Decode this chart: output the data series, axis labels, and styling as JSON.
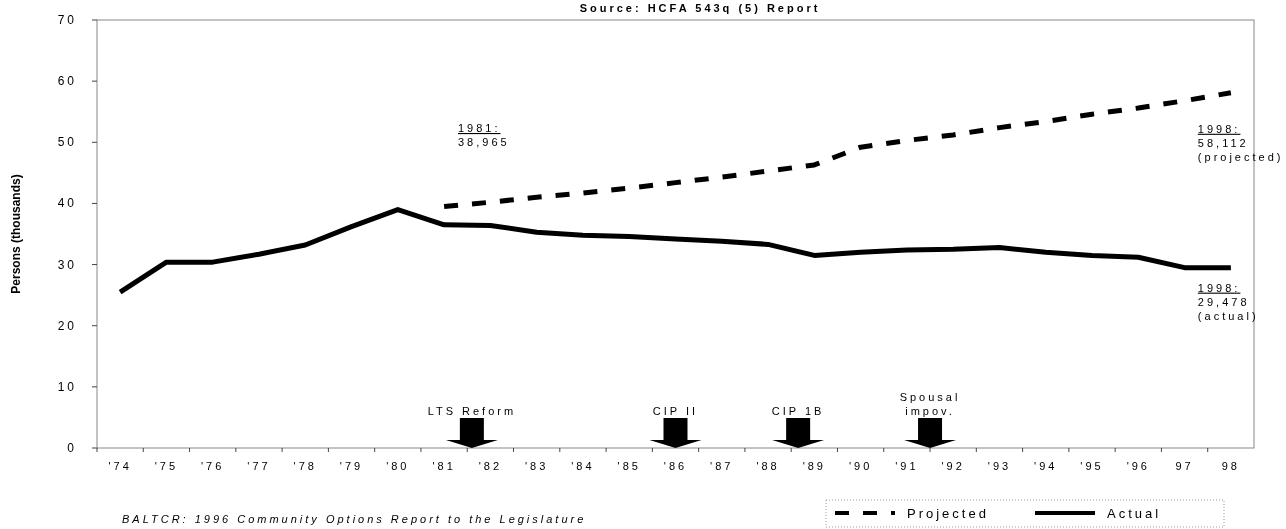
{
  "chart_data": {
    "type": "line",
    "title": "Source: HCFA 543q (5) Report",
    "ylabel": "Persons (thousands)",
    "categories": [
      "'74",
      "'75",
      "'76",
      "'77",
      "'78",
      "'79",
      "'80",
      "'81",
      "'82",
      "'83",
      "'84",
      "'85",
      "'86",
      "'87",
      "'88",
      "'89",
      "'90",
      "'91",
      "'92",
      "'93",
      "'94",
      "'95",
      "'96",
      "97",
      "98"
    ],
    "series": [
      {
        "name": "Projected",
        "color": "#000000",
        "line_style": "dashed",
        "values": [
          null,
          null,
          null,
          null,
          null,
          null,
          null,
          39.5,
          40.2,
          41.0,
          41.7,
          42.5,
          43.4,
          44.3,
          45.3,
          46.3,
          49.2,
          50.3,
          51.2,
          52.4,
          53.4,
          54.6,
          55.6,
          56.8,
          58.1
        ]
      },
      {
        "name": "Actual",
        "color": "#000000",
        "line_style": "solid",
        "values": [
          25.5,
          30.4,
          30.4,
          31.7,
          33.2,
          36.2,
          39.0,
          36.5,
          36.4,
          35.3,
          34.8,
          34.6,
          34.2,
          33.8,
          33.3,
          31.5,
          32.0,
          32.4,
          32.5,
          32.8,
          32.0,
          31.5,
          31.2,
          29.5,
          29.5
        ]
      }
    ],
    "ylim": [
      0,
      70
    ],
    "yticks": [
      0,
      10,
      20,
      30,
      40,
      50,
      60,
      70
    ],
    "grid": false,
    "legend": "bottom right",
    "annotations": [
      "1981:\n38,965",
      {
        "text": "1998:\n58,112\n(projected)",
        "x": "98",
        "y": 58.1
      },
      {
        "text": "1998:\n29,478\n(actual)",
        "x": "98",
        "y": 29.5
      },
      "LTS  Reform",
      "CIP II",
      "CIP 1B",
      "Spousal\nimpov.",
      "BALTCR: 1996 Community Options Report to the Legislature"
    ]
  }
}
